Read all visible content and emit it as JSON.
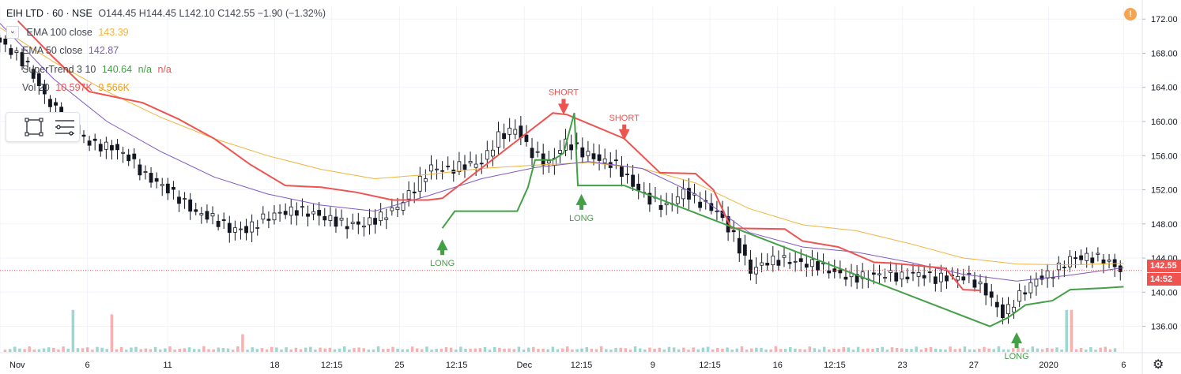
{
  "header": {
    "symbol": "EIH LTD · 60 · NSE",
    "ohlc": "O144.45 H144.45 L142.10 C142.55 −1.90 (−1.32%)"
  },
  "indicators": [
    {
      "label": "EMA 100 close",
      "value": "143.39",
      "color": "#f0b43c"
    },
    {
      "label": "EMA 50 close",
      "value": "142.87",
      "color": "#7e57c2"
    },
    {
      "label": "SuperTrend 3 10",
      "value": "140.64",
      "extra": "n/a",
      "extra2": "n/a",
      "color": "#43a047",
      "color2": "#ef5350"
    },
    {
      "label": "Vol 20",
      "value": "10.597K",
      "extra": "9.566K",
      "color": "#ef5350",
      "color2": "#ff9800"
    }
  ],
  "price_badge": {
    "value": "142.55",
    "color": "#ef5350"
  },
  "time_badge": {
    "value": "14:52",
    "color": "#ef5350"
  },
  "chart_data": {
    "type": "line",
    "x_ticks": [
      {
        "label": "Nov",
        "x": 0.0
      },
      {
        "label": "6",
        "x": 4.9
      },
      {
        "label": "11",
        "x": 9.4
      },
      {
        "label": "18",
        "x": 15.4
      },
      {
        "label": "12:15",
        "x": 18.6
      },
      {
        "label": "25",
        "x": 22.4
      },
      {
        "label": "12:15",
        "x": 25.6
      },
      {
        "label": "Dec",
        "x": 29.4
      },
      {
        "label": "12:15",
        "x": 32.6
      },
      {
        "label": "9",
        "x": 36.6
      },
      {
        "label": "12:15",
        "x": 39.8
      },
      {
        "label": "16",
        "x": 43.6
      },
      {
        "label": "12:15",
        "x": 46.8
      },
      {
        "label": "23",
        "x": 50.6
      },
      {
        "label": "27",
        "x": 54.6
      },
      {
        "label": "2020",
        "x": 58.8
      },
      {
        "label": "6",
        "x": 63.0
      }
    ],
    "y_ticks": [
      136.0,
      140.0,
      144.0,
      148.0,
      152.0,
      156.0,
      160.0,
      164.0,
      168.0,
      172.0
    ],
    "ylim": [
      133.0,
      173.5
    ],
    "xlim": [
      0.0,
      64.0
    ],
    "candles_close": [
      168.3,
      166.5,
      163.0,
      160.5,
      158.5,
      157.2,
      157.0,
      155.8,
      153.6,
      152.5,
      151.0,
      149.3,
      148.7,
      147.4,
      147.3,
      148.6,
      149.3,
      149.6,
      149.2,
      148.5,
      147.9,
      148.0,
      148.8,
      150.0,
      152.2,
      154.6,
      154.3,
      154.9,
      155.2,
      158.2,
      159.2,
      156.3,
      155.0,
      157.6,
      156.4,
      155.5,
      154.9,
      152.6,
      150.8,
      150.0,
      151.8,
      150.5,
      149.5,
      146.5,
      142.5,
      143.6,
      143.8,
      143.4,
      143.2,
      142.3,
      141.7,
      141.9,
      142.1,
      141.8,
      142.2,
      141.6,
      141.8,
      141.7,
      140.1,
      137.3,
      139.6,
      141.5,
      142.3,
      143.9,
      144.1,
      143.9,
      142.6
    ],
    "series": [
      {
        "name": "EMA 100 close",
        "color": "#f0b43c",
        "values": [
          [
            0,
            171.0
          ],
          [
            3,
            167.0
          ],
          [
            6,
            163.5
          ],
          [
            9,
            160.5
          ],
          [
            12,
            158.0
          ],
          [
            15,
            156.0
          ],
          [
            18,
            154.4
          ],
          [
            21,
            153.3
          ],
          [
            24,
            153.8
          ],
          [
            27,
            154.5
          ],
          [
            30,
            154.9
          ],
          [
            33,
            155.2
          ],
          [
            36,
            154.5
          ],
          [
            39,
            152.8
          ],
          [
            42,
            149.8
          ],
          [
            45,
            147.9
          ],
          [
            48,
            147.2
          ],
          [
            51,
            145.7
          ],
          [
            54,
            144.0
          ],
          [
            57,
            143.3
          ],
          [
            60,
            143.2
          ],
          [
            63,
            143.39
          ]
        ]
      },
      {
        "name": "EMA 50 close",
        "color": "#7e57c2",
        "values": [
          [
            0,
            171.5
          ],
          [
            3,
            165.0
          ],
          [
            6,
            160.0
          ],
          [
            9,
            156.5
          ],
          [
            12,
            153.5
          ],
          [
            15,
            151.5
          ],
          [
            18,
            150.2
          ],
          [
            21,
            149.5
          ],
          [
            24,
            151.3
          ],
          [
            27,
            153.3
          ],
          [
            30,
            154.6
          ],
          [
            33,
            155.3
          ],
          [
            36,
            154.5
          ],
          [
            39,
            151.5
          ],
          [
            42,
            147.0
          ],
          [
            45,
            145.3
          ],
          [
            48,
            144.7
          ],
          [
            51,
            143.5
          ],
          [
            54,
            142.1
          ],
          [
            57,
            141.3
          ],
          [
            60,
            142.0
          ],
          [
            63,
            142.87
          ]
        ]
      },
      {
        "name": "SuperTrend 3 10",
        "color": "#ef5350",
        "values": [
          [
            1,
            171.8
          ],
          [
            3,
            167.5
          ],
          [
            5,
            163.5
          ],
          [
            8,
            162.2
          ],
          [
            10,
            160.3
          ],
          [
            12,
            158.0
          ],
          [
            14,
            155.0
          ],
          [
            16,
            152.5
          ],
          [
            18,
            152.3
          ],
          [
            20,
            151.7
          ],
          [
            22,
            150.8
          ],
          [
            24,
            150.8
          ],
          [
            24.8,
            151.0
          ],
          [
            31,
            161.0
          ],
          [
            31.8,
            160.8
          ],
          [
            35.0,
            158.0
          ],
          [
            36.0,
            156.0
          ],
          [
            37.0,
            154.0
          ],
          [
            39.0,
            153.9
          ],
          [
            40.0,
            152.0
          ],
          [
            41.0,
            147.5
          ],
          [
            44.0,
            147.4
          ],
          [
            45.0,
            146.0
          ],
          [
            47.0,
            145.3
          ],
          [
            49.0,
            143.5
          ],
          [
            50.0,
            143.4
          ],
          [
            53.0,
            142.8
          ],
          [
            54.0,
            140.3
          ],
          [
            55.0,
            140.2
          ]
        ]
      },
      {
        "name": "SuperTrend 3 10",
        "color": "#43a047",
        "values": [
          [
            24.8,
            147.5
          ],
          [
            25.5,
            149.5
          ],
          [
            29.0,
            149.5
          ],
          [
            29.6,
            152.3
          ],
          [
            30.0,
            155.5
          ],
          [
            31.0,
            155.5
          ],
          [
            31.6,
            156.3
          ],
          [
            32.2,
            161.0
          ],
          [
            32.4,
            152.5
          ],
          [
            35.0,
            152.5
          ],
          [
            55.5,
            136.0
          ],
          [
            56.5,
            137.0
          ],
          [
            57.5,
            138.5
          ],
          [
            59.0,
            139.0
          ],
          [
            60.0,
            140.3
          ],
          [
            61.0,
            140.4
          ],
          [
            62.0,
            140.5
          ],
          [
            63.0,
            140.64
          ]
        ]
      }
    ],
    "annotations": [
      {
        "text": "LONG",
        "x": 24.8,
        "y": 146.2,
        "side": "below",
        "color": "#43a047"
      },
      {
        "text": "SHORT",
        "x": 31.6,
        "y": 160.8,
        "side": "above",
        "color": "#ef5350"
      },
      {
        "text": "LONG",
        "x": 32.6,
        "y": 151.5,
        "side": "below",
        "color": "#43a047"
      },
      {
        "text": "SHORT",
        "x": 35.0,
        "y": 157.8,
        "side": "above",
        "color": "#ef5350"
      },
      {
        "text": "LONG",
        "x": 57.0,
        "y": 135.3,
        "side": "below",
        "color": "#43a047"
      }
    ],
    "volume_spikes": [
      [
        4.2,
        0.95
      ],
      [
        6.3,
        0.85
      ],
      [
        13.6,
        0.4
      ],
      [
        59.8,
        0.95
      ],
      [
        60.2,
        0.95
      ]
    ],
    "grid": true
  }
}
